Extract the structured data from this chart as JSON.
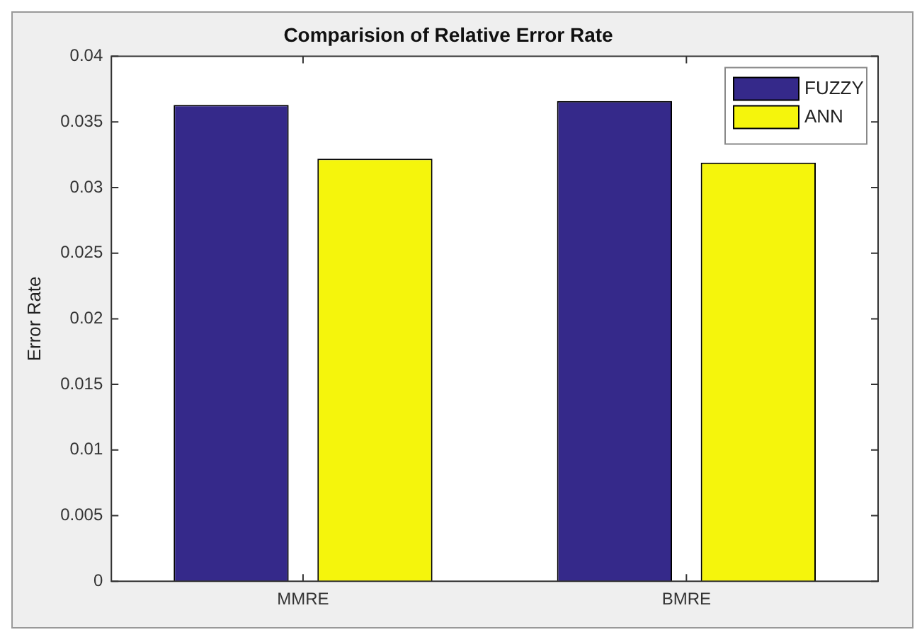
{
  "chart_data": {
    "type": "bar",
    "title": "Comparision of Relative Error Rate",
    "ylabel": "Error Rate",
    "categories": [
      "MMRE",
      "BMRE"
    ],
    "series": [
      {
        "name": "FUZZY",
        "color": "#35298a",
        "values": [
          0.0363,
          0.0366
        ]
      },
      {
        "name": "ANN",
        "color": "#f5f50c",
        "values": [
          0.0322,
          0.0319
        ]
      }
    ],
    "ylim": [
      0,
      0.04
    ],
    "yticks": [
      0,
      0.005,
      0.01,
      0.015,
      0.02,
      0.025,
      0.03,
      0.035,
      0.04
    ],
    "grid": false,
    "legend": "top right"
  }
}
